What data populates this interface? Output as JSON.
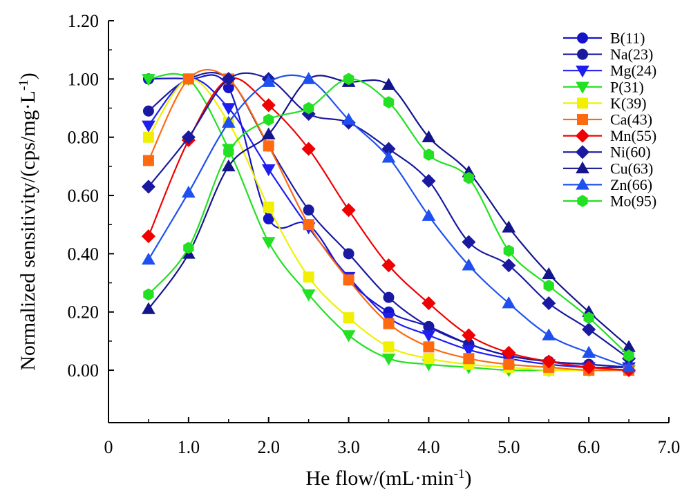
{
  "chart_data": {
    "type": "line",
    "title": "",
    "xlabel": {
      "prefix": "He flow/(mL·min",
      "sup": "-1",
      "suffix": ")"
    },
    "ylabel": {
      "prefix": "Normalized sensitivity/(cps/mg·L",
      "sup": "-1",
      "suffix": ")"
    },
    "xlim": [
      0,
      7.0
    ],
    "ylim": [
      -0.18,
      1.2
    ],
    "x_ticks": [
      0,
      1.0,
      2.0,
      3.0,
      4.0,
      5.0,
      6.0,
      7.0
    ],
    "x_tick_labels": [
      "0",
      "1.0",
      "2.0",
      "3.0",
      "4.0",
      "5.0",
      "6.0",
      "7.0"
    ],
    "y_ticks": [
      0.0,
      0.2,
      0.4,
      0.6,
      0.8,
      1.0,
      1.2
    ],
    "y_tick_labels": [
      "0.00",
      "0.20",
      "0.40",
      "0.60",
      "0.80",
      "1.00",
      "1.20"
    ],
    "grid": false,
    "legend_position": "top-right",
    "x": [
      0.5,
      1.0,
      1.5,
      2.0,
      2.5,
      3.0,
      3.5,
      4.0,
      4.5,
      5.0,
      5.5,
      6.0,
      6.5
    ],
    "series": [
      {
        "name": "B(11)",
        "color": "#1414c8",
        "marker": "circle",
        "values": [
          1.0,
          1.0,
          0.97,
          0.52,
          0.5,
          0.31,
          0.2,
          0.15,
          0.09,
          0.05,
          0.03,
          0.02,
          0.01
        ]
      },
      {
        "name": "Na(23)",
        "color": "#1a1aa0",
        "marker": "circle",
        "values": [
          0.89,
          1.0,
          1.0,
          0.77,
          0.55,
          0.4,
          0.25,
          0.15,
          0.09,
          0.05,
          0.03,
          0.02,
          0.01
        ]
      },
      {
        "name": "Mg(24)",
        "color": "#1e1ef0",
        "marker": "tri-down",
        "values": [
          0.84,
          1.0,
          0.9,
          0.69,
          0.49,
          0.32,
          0.18,
          0.12,
          0.07,
          0.04,
          0.02,
          0.01,
          0.01
        ]
      },
      {
        "name": "P(31)",
        "color": "#22e022",
        "marker": "tri-down",
        "values": [
          1.0,
          1.0,
          0.76,
          0.44,
          0.26,
          0.12,
          0.04,
          0.02,
          0.01,
          0.0,
          0.0,
          0.0,
          0.0
        ]
      },
      {
        "name": "K(39)",
        "color": "#f0f000",
        "marker": "square",
        "values": [
          0.8,
          1.0,
          0.85,
          0.56,
          0.32,
          0.18,
          0.08,
          0.04,
          0.02,
          0.01,
          0.0,
          0.0,
          0.0
        ]
      },
      {
        "name": "Ca(43)",
        "color": "#ff6a10",
        "marker": "square",
        "values": [
          0.72,
          1.0,
          1.0,
          0.77,
          0.5,
          0.31,
          0.16,
          0.08,
          0.04,
          0.02,
          0.01,
          0.0,
          0.0
        ]
      },
      {
        "name": "Mn(55)",
        "color": "#f00000",
        "marker": "diamond",
        "values": [
          0.46,
          0.79,
          1.0,
          0.91,
          0.76,
          0.55,
          0.36,
          0.23,
          0.12,
          0.06,
          0.03,
          0.01,
          0.0
        ]
      },
      {
        "name": "Ni(60)",
        "color": "#1a1aa0",
        "marker": "diamond",
        "values": [
          0.63,
          0.8,
          1.0,
          1.0,
          0.88,
          0.85,
          0.76,
          0.65,
          0.44,
          0.36,
          0.23,
          0.14,
          0.04
        ]
      },
      {
        "name": "Cu(63)",
        "color": "#14148c",
        "marker": "tri-up",
        "values": [
          0.21,
          0.4,
          0.7,
          0.81,
          1.0,
          0.99,
          0.98,
          0.8,
          0.68,
          0.49,
          0.33,
          0.2,
          0.08
        ]
      },
      {
        "name": "Zn(66)",
        "color": "#1e50f0",
        "marker": "tri-up",
        "values": [
          0.38,
          0.61,
          0.85,
          0.99,
          1.0,
          0.86,
          0.73,
          0.53,
          0.36,
          0.23,
          0.12,
          0.06,
          0.01
        ]
      },
      {
        "name": "Mo(95)",
        "color": "#22e022",
        "marker": "hexagon",
        "values": [
          0.26,
          0.42,
          0.75,
          0.86,
          0.9,
          1.0,
          0.92,
          0.74,
          0.66,
          0.41,
          0.29,
          0.18,
          0.05
        ]
      }
    ]
  }
}
